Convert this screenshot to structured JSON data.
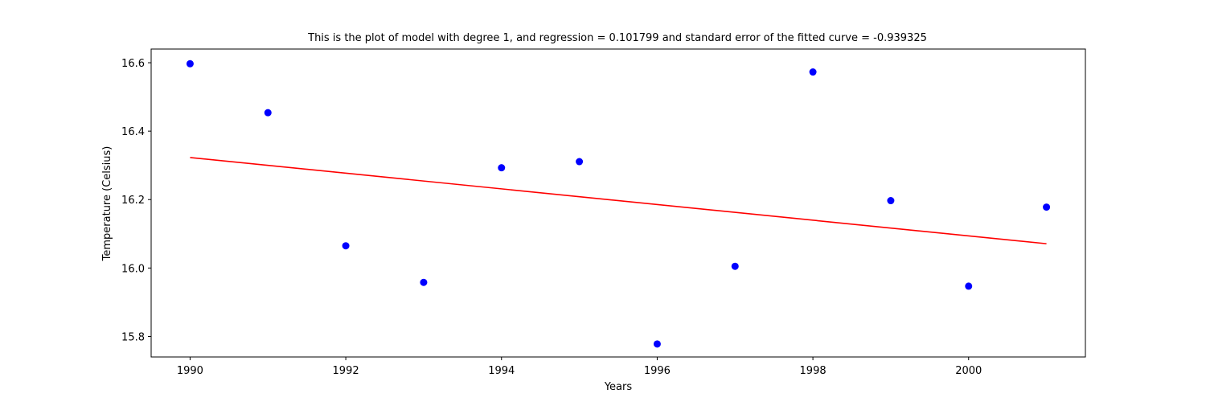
{
  "chart_data": {
    "type": "scatter",
    "title": "This is the plot of model with degree 1, and regression = 0.101799 and standard error of the fitted curve = -0.939325",
    "xlabel": "Years",
    "ylabel": "Temperature (Celsius)",
    "xlim": [
      1989.5,
      2001.5
    ],
    "ylim": [
      15.74,
      16.64
    ],
    "xticks": [
      1990,
      1992,
      1994,
      1996,
      1998,
      2000
    ],
    "xtick_labels": [
      "1990",
      "1992",
      "1994",
      "1996",
      "1998",
      "2000"
    ],
    "yticks": [
      15.8,
      16.0,
      16.2,
      16.4,
      16.6
    ],
    "ytick_labels": [
      "15.8",
      "16.0",
      "16.2",
      "16.4",
      "16.6"
    ],
    "grid": false,
    "series": [
      {
        "marker": "point",
        "color": "#0000ff",
        "x": [
          1990,
          1991,
          1992,
          1993,
          1994,
          1995,
          1996,
          1997,
          1998,
          1999,
          2000,
          2001
        ],
        "y": [
          16.597,
          16.454,
          16.065,
          15.958,
          16.293,
          16.311,
          15.778,
          16.005,
          16.573,
          16.197,
          15.947,
          16.178
        ]
      },
      {
        "marker": "line",
        "color": "#ff0000",
        "x": [
          1990,
          2001
        ],
        "y": [
          16.323,
          16.071
        ]
      }
    ]
  }
}
